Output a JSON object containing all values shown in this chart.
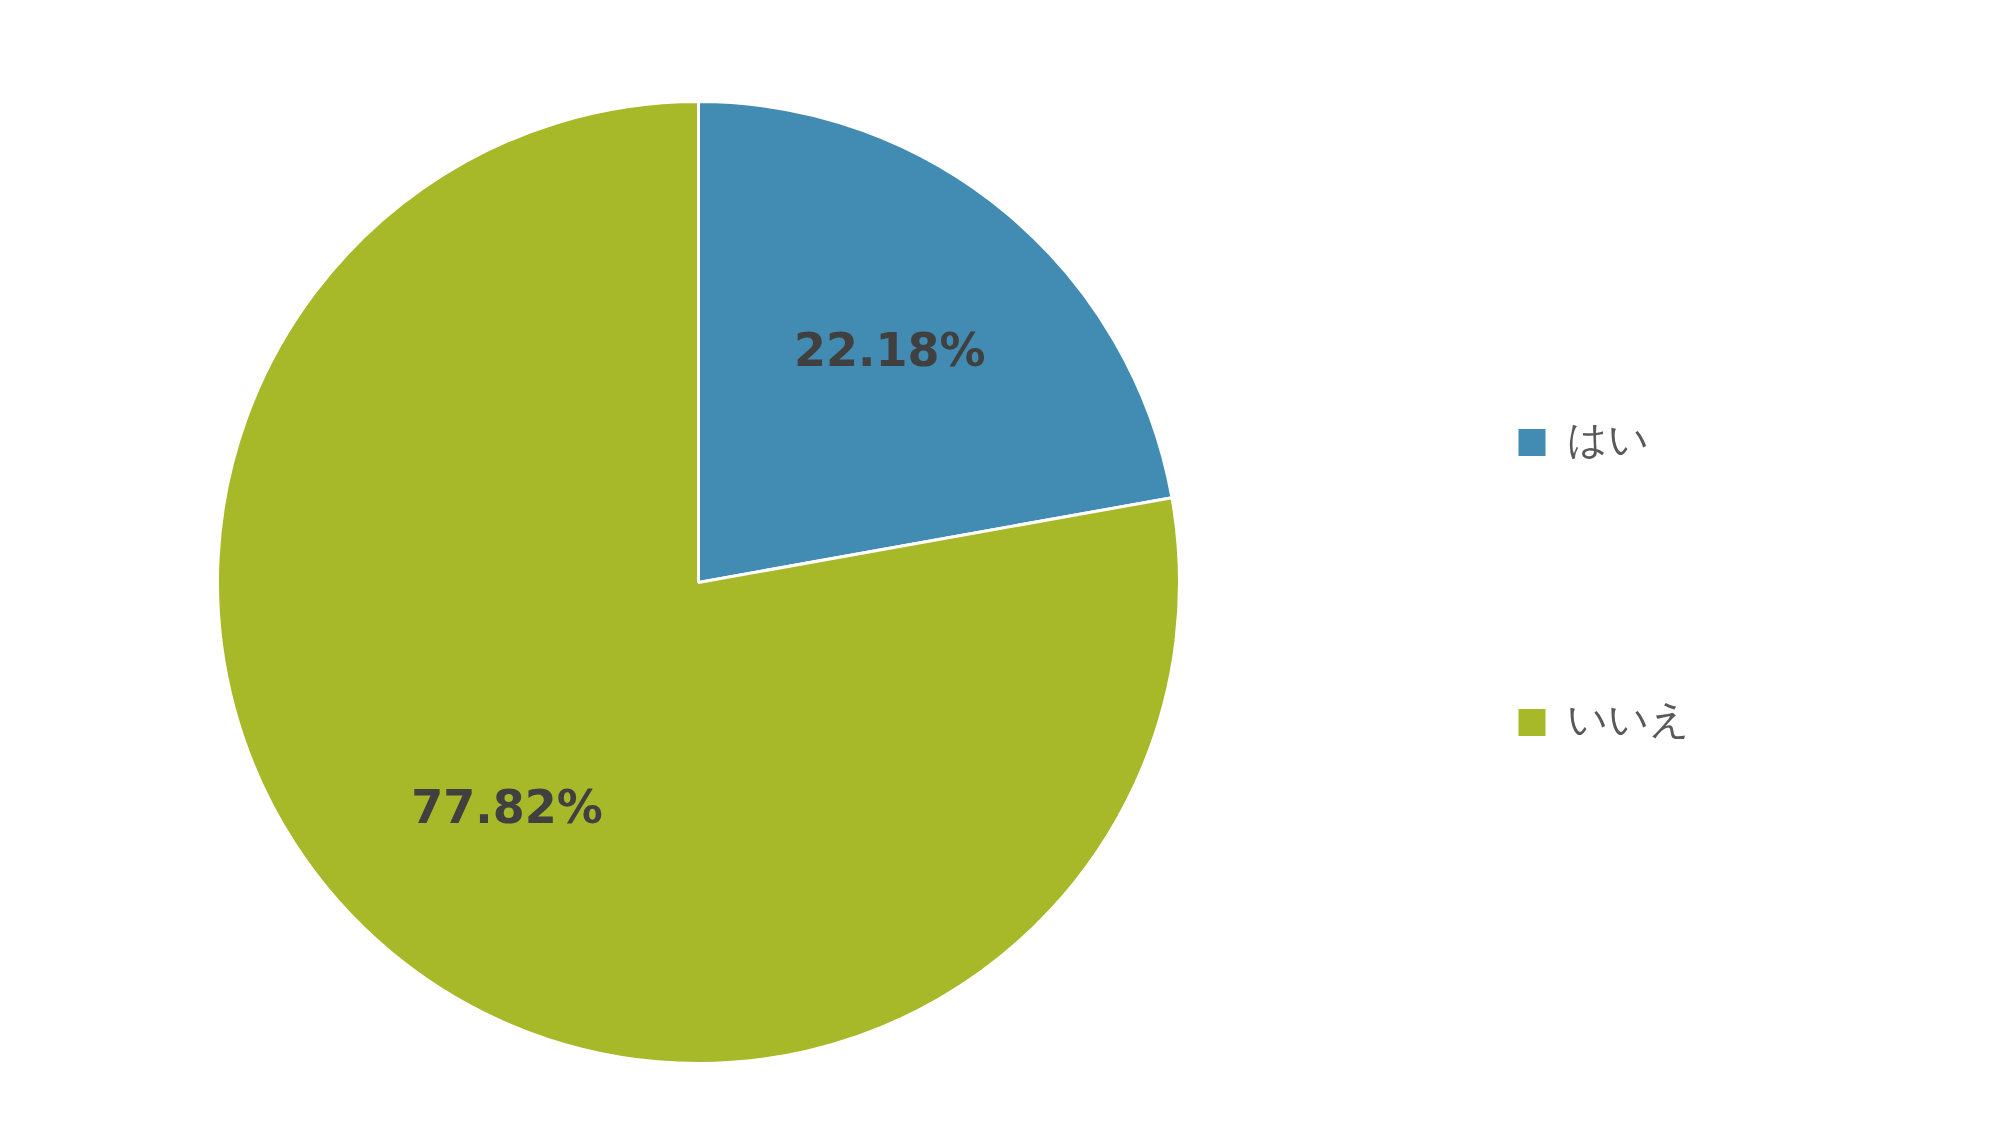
{
  "chart_data": {
    "type": "pie",
    "categories": [
      "はい",
      "いいえ"
    ],
    "values": [
      22.18,
      77.82
    ],
    "colors": [
      "#428bb3",
      "#a7b829"
    ],
    "value_labels": [
      "22.18%",
      "77.82%"
    ],
    "legend": "right"
  }
}
